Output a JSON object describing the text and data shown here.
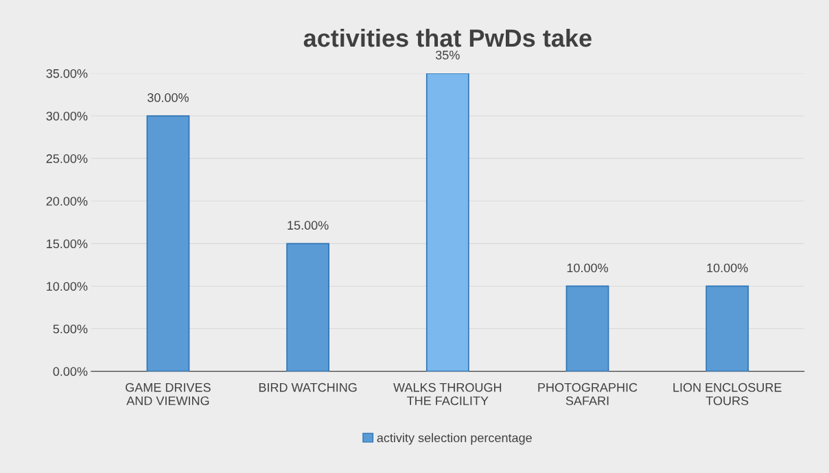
{
  "chart_data": {
    "type": "bar",
    "title": "activities that PwDs take",
    "categories": [
      "GAME DRIVES\nAND VIEWING",
      "BIRD WATCHING",
      "WALKS THROUGH\nTHE FACILITY",
      "PHOTOGRAPHIC\nSAFARI",
      "LION ENCLOSURE\nTOURS"
    ],
    "series": [
      {
        "name": "activity selection percentage",
        "color": "#5b9bd5",
        "values": [
          30,
          15,
          35,
          10,
          10
        ],
        "colors": [
          "#5b9bd5",
          "#5b9bd5",
          "#7ab8ee",
          "#5b9bd5",
          "#5b9bd5"
        ],
        "value_labels": [
          "30.00%",
          "15.00%",
          "35%",
          "10.00%",
          "10.00%"
        ]
      }
    ],
    "ylim": [
      0,
      35
    ],
    "yticks": [
      {
        "value": 0,
        "label": "0.00%"
      },
      {
        "value": 5,
        "label": "5.00%"
      },
      {
        "value": 10,
        "label": "10.00%"
      },
      {
        "value": 15,
        "label": "15.00%"
      },
      {
        "value": 20,
        "label": "20.00%"
      },
      {
        "value": 25,
        "label": "25.00%"
      },
      {
        "value": 30,
        "label": "30.00%"
      },
      {
        "value": 35,
        "label": "35.00%"
      }
    ],
    "grid": "y",
    "legend": "bottom"
  }
}
